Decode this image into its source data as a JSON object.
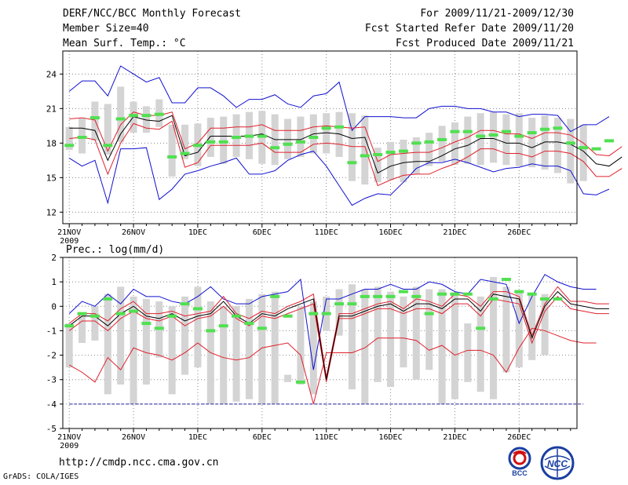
{
  "header": {
    "title": "DERF/NCC/BCC Monthly Forecast",
    "member_size": "Member Size=40",
    "variable": "Mean Surf. Temp.: °C",
    "forecast_period": "For 2009/11/21-2009/12/30",
    "start_date": "Fcst Started Refer Date 2009/11/20",
    "produced_date": "Fcst Produced Date 2009/11/21"
  },
  "footer": {
    "url": "http://cmdp.ncc.cma.gov.cn",
    "credit": "GrADS: COLA/IGES",
    "logo_bcc": "BCC",
    "logo_ncc": "NCC"
  },
  "colors": {
    "box": "#d4d4d4",
    "ensemble_mean": "#000000",
    "spread_inner": "#e0202c",
    "spread_outer": "#1010d0",
    "observed": "#50e050",
    "zero_line": "#2020a0"
  },
  "chart_data": [
    {
      "type": "line",
      "title": "Mean Surf. Temp.: °C",
      "x_tick_labels": [
        "21NOV",
        "26NOV",
        "1DEC",
        "6DEC",
        "11DEC",
        "16DEC",
        "21DEC",
        "26DEC"
      ],
      "x_year_label": "2009",
      "x_range": [
        0.5,
        40.5
      ],
      "ylim": [
        11,
        26
      ],
      "y_ticks": [
        12,
        15,
        18,
        21,
        24
      ],
      "grid": true,
      "series": [
        {
          "name": "ensemble mean",
          "values": [
            19.3,
            19.3,
            19.1,
            16.5,
            18.8,
            20.3,
            20.0,
            19.9,
            20.4,
            16.9,
            17.2,
            18.6,
            18.6,
            18.6,
            18.6,
            18.8,
            18.3,
            18.3,
            18.3,
            18.8,
            18.9,
            18.8,
            18.4,
            18.5,
            15.4,
            16.0,
            16.3,
            16.4,
            16.4,
            16.9,
            17.5,
            17.8,
            18.4,
            18.4,
            18.0,
            18.0,
            17.6,
            18.1,
            18.1,
            17.9,
            17.3,
            16.2,
            16.0,
            16.8
          ]
        },
        {
          "name": "upper inner",
          "values": [
            20.1,
            20.2,
            20.0,
            17.3,
            19.6,
            20.7,
            20.4,
            20.4,
            20.7,
            17.5,
            18.0,
            19.3,
            19.3,
            19.4,
            19.4,
            19.6,
            19.1,
            19.1,
            19.1,
            19.4,
            19.5,
            19.4,
            19.3,
            19.4,
            16.4,
            17.0,
            17.1,
            17.2,
            17.2,
            17.6,
            18.1,
            18.5,
            19.1,
            19.1,
            18.8,
            18.8,
            18.4,
            18.9,
            18.9,
            18.7,
            18.0,
            17.0,
            16.9,
            17.7
          ]
        },
        {
          "name": "lower inner",
          "values": [
            18.4,
            18.5,
            18.3,
            15.3,
            18.0,
            19.7,
            19.3,
            19.2,
            19.9,
            15.9,
            16.3,
            17.8,
            17.8,
            17.8,
            17.8,
            18.0,
            17.2,
            17.2,
            17.2,
            17.9,
            18.0,
            17.9,
            17.7,
            17.7,
            14.3,
            14.8,
            15.2,
            15.3,
            15.3,
            15.8,
            16.2,
            16.8,
            17.5,
            17.5,
            17.1,
            17.1,
            16.8,
            17.3,
            17.3,
            17.1,
            16.4,
            15.1,
            15.1,
            15.8
          ]
        },
        {
          "name": "upper outer",
          "values": [
            22.5,
            23.4,
            23.4,
            22.1,
            24.7,
            24.0,
            23.3,
            23.7,
            21.5,
            21.5,
            22.8,
            22.8,
            22.1,
            21.1,
            21.8,
            21.8,
            22.2,
            21.4,
            21.1,
            22.1,
            22.3,
            23.3,
            19.1,
            20.3,
            20.3,
            20.3,
            20.2,
            20.2,
            21.0,
            21.2,
            21.2,
            21.0,
            21.0,
            20.7,
            20.7,
            20.3,
            20.5,
            20.5,
            20.4,
            19.0,
            19.6,
            19.6,
            20.3
          ]
        },
        {
          "name": "lower outer",
          "values": [
            16.7,
            16.0,
            16.5,
            12.8,
            17.5,
            17.5,
            17.6,
            13.1,
            14.0,
            15.3,
            15.6,
            16.0,
            16.3,
            16.7,
            15.3,
            15.3,
            15.6,
            16.5,
            17.0,
            17.3,
            16.0,
            14.3,
            12.6,
            13.2,
            13.6,
            13.5,
            14.6,
            15.8,
            16.3,
            16.3,
            16.6,
            16.3,
            15.9,
            15.5,
            15.8,
            15.9,
            16.2,
            16.0,
            16.0,
            15.6,
            13.6,
            13.5,
            14.0
          ]
        },
        {
          "name": "box max",
          "values": [
            19.4,
            20.2,
            21.6,
            21.4,
            22.9,
            21.6,
            21.2,
            21.8,
            19.6,
            19.6,
            19.7,
            20.2,
            20.3,
            20.5,
            20.7,
            20.8,
            20.5,
            20.1,
            20.3,
            20.5,
            20.6,
            20.7,
            20.6,
            20.4,
            17.6,
            18.1,
            18.3,
            18.5,
            18.9,
            19.5,
            19.8,
            20.3,
            20.6,
            20.7,
            20.5,
            20.6,
            20.2,
            20.4,
            20.2,
            20.1,
            19.6,
            19.3,
            18.8,
            20.3
          ]
        },
        {
          "name": "box min",
          "values": [
            17.4,
            17.1,
            18.2,
            17.0,
            18.1,
            18.9,
            18.9,
            19.4,
            15.1,
            16.6,
            16.0,
            16.8,
            16.2,
            16.8,
            16.6,
            16.2,
            16.1,
            16.6,
            16.8,
            17.1,
            17.1,
            16.8,
            14.7,
            14.4,
            14.6,
            14.8,
            14.6,
            15.3,
            16.0,
            16.4,
            16.1,
            16.2,
            16.1,
            16.3,
            16.1,
            16.0,
            15.9,
            15.7,
            15.4,
            14.5,
            14.7
          ]
        },
        {
          "name": "observed",
          "values": [
            17.8,
            18.5,
            20.2,
            17.8,
            20.1,
            20.4,
            20.4,
            20.5,
            16.8,
            17.1,
            17.8,
            18.1,
            18.1,
            18.5,
            18.6,
            18.6,
            17.6,
            17.9,
            18.1,
            18.5,
            19.3,
            19.4,
            16.3,
            16.9,
            17.0,
            17.2,
            17.3,
            18.0,
            18.1,
            18.3,
            19.0,
            19.0,
            18.6,
            18.7,
            19.0,
            18.6,
            18.9,
            19.2,
            19.3,
            18.0,
            17.6,
            17.5,
            18.2
          ]
        }
      ]
    },
    {
      "type": "line",
      "title": "Prec.: log(mm/d)",
      "x_tick_labels": [
        "21NOV",
        "26NOV",
        "1DEC",
        "6DEC",
        "11DEC",
        "16DEC",
        "21DEC",
        "26DEC"
      ],
      "x_year_label": "2009",
      "x_range": [
        0.5,
        40.5
      ],
      "ylim": [
        -5,
        2
      ],
      "y_ticks": [
        -5,
        -4,
        -3,
        -2,
        -1,
        0,
        1,
        2
      ],
      "grid": true,
      "zero_reference": -4,
      "series": [
        {
          "name": "ensemble mean",
          "values": [
            -0.8,
            -0.4,
            -0.4,
            -0.8,
            -0.3,
            0.0,
            -0.4,
            -0.5,
            -0.3,
            -0.6,
            -0.4,
            -0.3,
            0.2,
            -0.4,
            -0.7,
            -0.3,
            -0.4,
            -0.1,
            0.1,
            0.3,
            -3.0,
            -0.4,
            -0.4,
            -0.2,
            0.0,
            0.1,
            -0.2,
            0.1,
            0.1,
            -0.1,
            0.3,
            0.3,
            -0.2,
            0.5,
            0.4,
            0.3,
            -1.3,
            0.0,
            0.6,
            0.1,
            0.0,
            -0.1,
            -0.1
          ]
        },
        {
          "name": "upper inner",
          "values": [
            -0.7,
            -0.3,
            -0.3,
            -0.6,
            -0.1,
            0.2,
            -0.3,
            -0.3,
            -0.2,
            -0.4,
            -0.3,
            -0.2,
            0.4,
            -0.3,
            -0.5,
            -0.2,
            -0.3,
            0.0,
            0.2,
            0.5,
            -2.9,
            -0.3,
            -0.3,
            -0.1,
            0.1,
            0.2,
            -0.1,
            0.3,
            0.2,
            0.0,
            0.5,
            0.4,
            0.0,
            0.6,
            0.6,
            0.4,
            -1.2,
            0.1,
            0.8,
            0.2,
            0.2,
            0.1,
            0.1
          ]
        },
        {
          "name": "lower inner",
          "values": [
            -1.0,
            -0.6,
            -0.6,
            -1.0,
            -0.5,
            -0.2,
            -0.5,
            -0.6,
            -0.4,
            -0.8,
            -0.5,
            -0.4,
            0.0,
            -0.5,
            -0.8,
            -0.4,
            -0.5,
            -0.3,
            -0.1,
            0.1,
            -3.1,
            -0.5,
            -0.5,
            -0.3,
            -0.1,
            -0.1,
            -0.3,
            -0.1,
            -0.1,
            -0.3,
            0.1,
            0.1,
            -0.4,
            0.3,
            0.2,
            0.1,
            -1.5,
            -0.2,
            0.4,
            -0.1,
            -0.2,
            -0.3,
            -0.3
          ]
        },
        {
          "name": "upper outer",
          "values": [
            -0.3,
            0.2,
            0.0,
            0.5,
            0.1,
            0.7,
            0.4,
            0.4,
            0.2,
            0.1,
            0.4,
            0.8,
            0.3,
            0.1,
            0.1,
            0.4,
            0.5,
            0.6,
            1.1,
            -2.6,
            0.3,
            0.3,
            0.5,
            0.7,
            0.7,
            0.9,
            0.7,
            0.7,
            1.0,
            0.9,
            0.6,
            0.5,
            1.1,
            1.0,
            0.9,
            -0.7,
            0.4,
            1.3,
            1.0,
            0.8,
            0.7,
            0.7
          ]
        },
        {
          "name": "lower outer",
          "values": [
            -2.4,
            -2.7,
            -3.1,
            -2.1,
            -2.6,
            -1.7,
            -1.9,
            -2.0,
            -2.2,
            -1.9,
            -1.5,
            -1.9,
            -2.1,
            -2.2,
            -2.1,
            -1.7,
            -1.6,
            -1.5,
            -2.0,
            -4.0,
            -1.9,
            -1.9,
            -1.9,
            -1.7,
            -1.3,
            -1.3,
            -1.3,
            -1.4,
            -1.8,
            -1.6,
            -2.0,
            -1.8,
            -1.8,
            -2.0,
            -2.7,
            -1.7,
            -0.9,
            -1.0,
            -1.2,
            -1.4,
            -1.5,
            -1.5
          ]
        },
        {
          "name": "box max",
          "values": [
            -0.7,
            -0.3,
            0.0,
            0.5,
            0.8,
            0.4,
            0.3,
            0.2,
            0.0,
            0.4,
            0.8,
            0.2,
            0.0,
            0.0,
            0.3,
            0.5,
            0.6,
            -2.8,
            0.0,
            0.2,
            0.4,
            0.7,
            0.9,
            0.7,
            0.8,
            0.6,
            0.4,
            0.8,
            0.7,
            0.7,
            0.5,
            -0.7,
            0.4,
            1.2,
            0.8,
            0.6,
            0.5,
            0.5
          ]
        },
        {
          "name": "box min",
          "values": [
            -2.5,
            -1.5,
            -1.4,
            -3.6,
            -3.2,
            -4.0,
            -3.2,
            -2.1,
            -3.6,
            -2.8,
            -2.5,
            -4.0,
            -4.0,
            -3.9,
            -3.8,
            -4.0,
            -4.0,
            -3.1,
            -3.2,
            -3.6,
            -1.0,
            -1.2,
            -3.4,
            -4.0,
            -3.1,
            -3.3,
            -2.5,
            -3.0,
            -2.6,
            -4.0,
            -3.8,
            -3.1,
            -3.5,
            -3.8,
            -2.7,
            -2.5,
            -2.2,
            -2.0,
            -2.0
          ]
        },
        {
          "name": "observed",
          "values": [
            -0.8,
            -0.3,
            -0.4,
            0.3,
            -0.3,
            -0.2,
            -0.7,
            -0.9,
            -0.4,
            0.1,
            -0.1,
            -1.0,
            -0.8,
            -0.4,
            -0.7,
            -0.9,
            0.4,
            -0.4,
            -3.1,
            -0.3,
            -0.3,
            0.1,
            0.1,
            0.4,
            0.4,
            0.4,
            0.6,
            0.4,
            -0.3,
            0.5,
            0.5,
            0.5,
            -0.9,
            0.3,
            1.1,
            0.6,
            0.5,
            0.3,
            0.3
          ]
        }
      ]
    }
  ]
}
